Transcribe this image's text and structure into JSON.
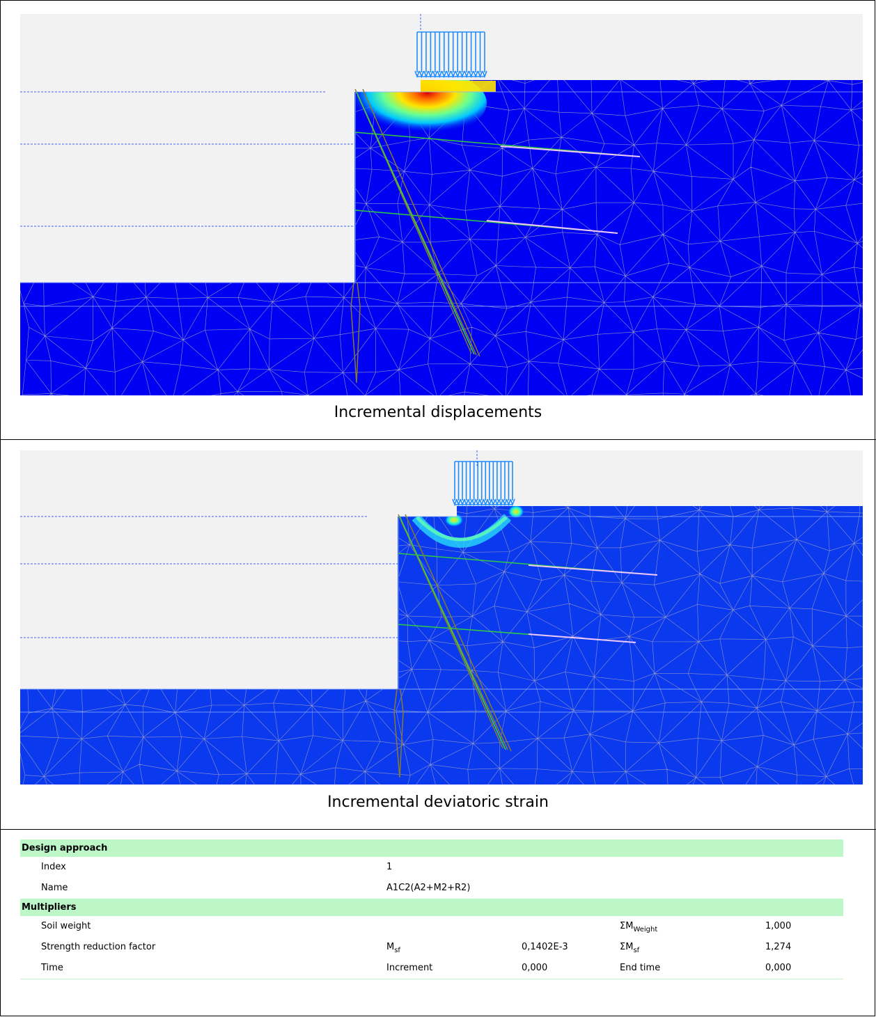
{
  "panels": [
    {
      "caption": "Incremental displacements"
    },
    {
      "caption": "Incremental deviatoric strain"
    }
  ],
  "table": {
    "sections": [
      {
        "title": "Design approach",
        "rows": [
          {
            "label": "Index",
            "col2": "1",
            "col3": "",
            "col4": "",
            "col4_sub": "",
            "col5": ""
          },
          {
            "label": "Name",
            "col2": "A1C2(A2+M2+R2)",
            "col3": "",
            "col4": "",
            "col4_sub": "",
            "col5": ""
          }
        ]
      },
      {
        "title": "Multipliers",
        "rows": [
          {
            "label": "Soil weight",
            "col2": "",
            "col2_sub": "",
            "col3": "",
            "col4": "ΣM",
            "col4_sub": "Weight",
            "col5": "1,000"
          },
          {
            "label": "Strength reduction factor",
            "col2": "M",
            "col2_sub": "sf",
            "col3": "0,1402E-3",
            "col4": "ΣM",
            "col4_sub": "sf",
            "col5": "1,274"
          },
          {
            "label": "Time",
            "col2": "Increment",
            "col2_sub": "",
            "col3": "0,000",
            "col4": "End time",
            "col4_sub": "",
            "col5": "0,000"
          }
        ]
      }
    ]
  },
  "colors": {
    "soil": "#0000f2",
    "soil_strain": "#0a39ee",
    "air": "#f2f2f2",
    "mesh": "#9aa0c8",
    "header_green": "#bdf7c8"
  }
}
